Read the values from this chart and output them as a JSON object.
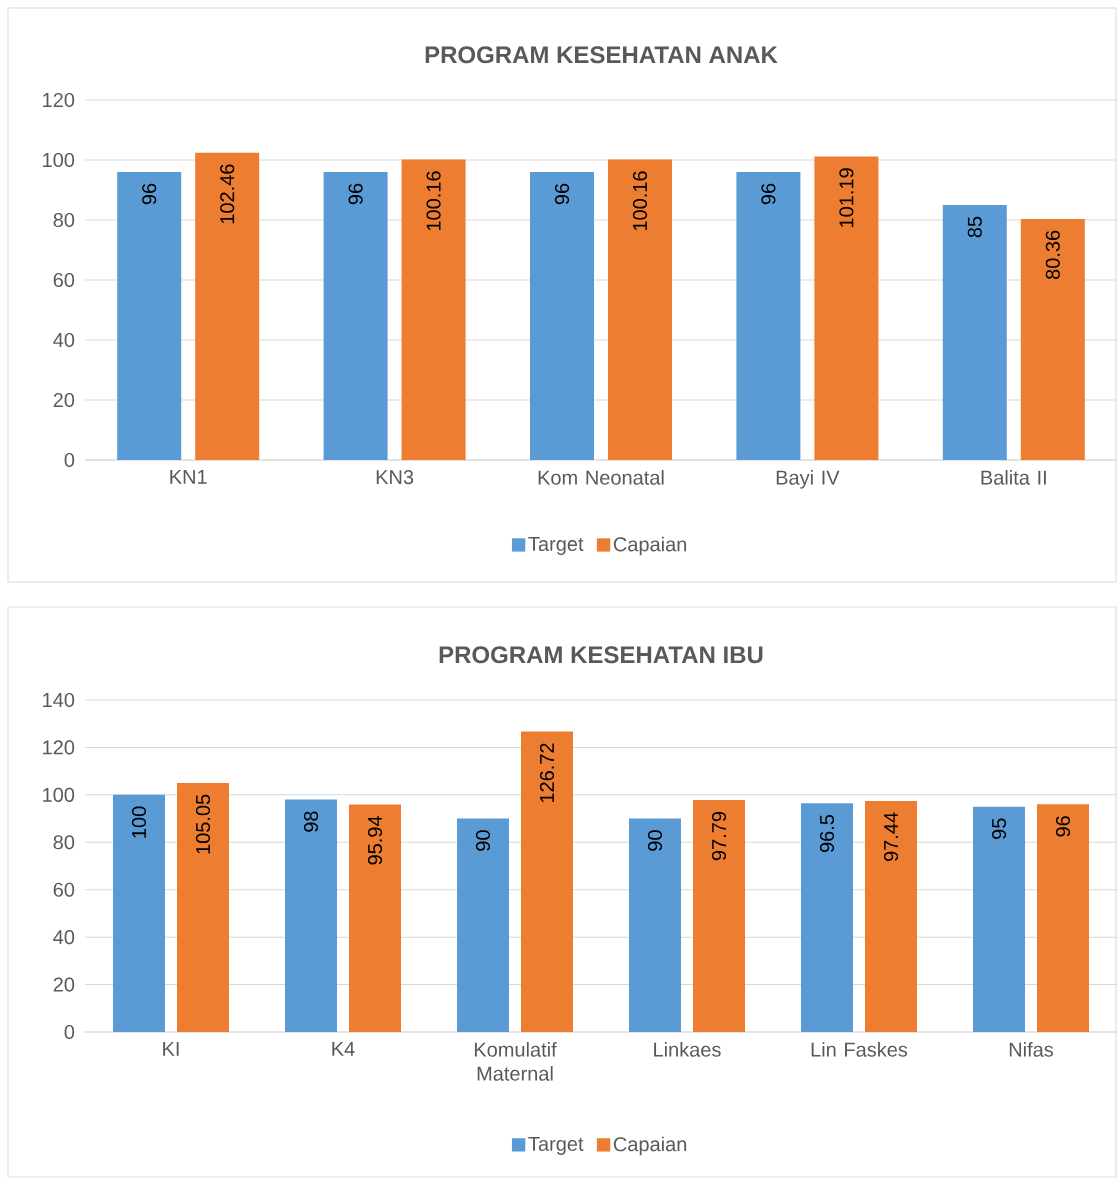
{
  "chart_data": [
    {
      "type": "bar",
      "title": "PROGRAM KESEHATAN ANAK",
      "categories": [
        "KN1",
        "KN3",
        "Kom Neonatal",
        "Bayi IV",
        "Balita II"
      ],
      "series": [
        {
          "name": "Target",
          "color": "#5b9bd5",
          "values": [
            96,
            96,
            96,
            96,
            85
          ]
        },
        {
          "name": "Capaian",
          "color": "#ed7d31",
          "values": [
            102.46,
            100.16,
            100.16,
            101.19,
            80.36
          ]
        }
      ],
      "ylim": [
        0,
        120
      ],
      "yticks": [
        0,
        20,
        40,
        60,
        80,
        100,
        120
      ],
      "grid": "y",
      "legend": "bottom",
      "data_labels": true
    },
    {
      "type": "bar",
      "title": "PROGRAM KESEHATAN IBU",
      "categories": [
        "KI",
        "K4",
        "Komulatif Maternal",
        "Linkaes",
        "Lin Faskes",
        "Nifas"
      ],
      "series": [
        {
          "name": "Target",
          "color": "#5b9bd5",
          "values": [
            100,
            98,
            90,
            90,
            96.5,
            95
          ]
        },
        {
          "name": "Capaian",
          "color": "#ed7d31",
          "values": [
            105.05,
            95.94,
            126.72,
            97.79,
            97.44,
            96
          ]
        }
      ],
      "ylim": [
        0,
        140
      ],
      "yticks": [
        0,
        20,
        40,
        60,
        80,
        100,
        120,
        140
      ],
      "grid": "y",
      "legend": "bottom",
      "data_labels": true
    }
  ]
}
